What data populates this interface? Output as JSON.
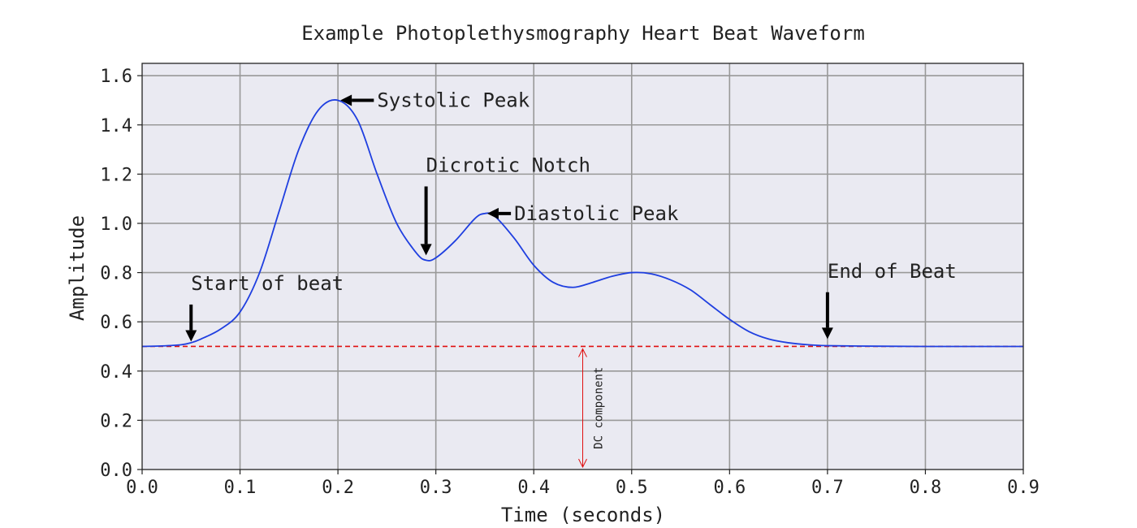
{
  "chart_data": {
    "type": "line",
    "title": "Example Photoplethysmography Heart Beat Waveform",
    "xlabel": "Time (seconds)",
    "ylabel": "Amplitude",
    "xlim": [
      0.0,
      0.9
    ],
    "ylim": [
      0.0,
      1.65
    ],
    "xticks": [
      "0.0",
      "0.1",
      "0.2",
      "0.3",
      "0.4",
      "0.5",
      "0.6",
      "0.7",
      "0.8",
      "0.9"
    ],
    "yticks": [
      "0.0",
      "0.2",
      "0.4",
      "0.6",
      "0.8",
      "1.0",
      "1.2",
      "1.4",
      "1.6"
    ],
    "grid": true,
    "baseline": 0.5,
    "colors": {
      "line": "#1f3fe0",
      "baseline": "#e01010",
      "plot_bg": "#eaeaf2",
      "grid": "#999999",
      "arrow": "#000000"
    },
    "series": [
      {
        "x": [
          0.0,
          0.02,
          0.04,
          0.05,
          0.06,
          0.08,
          0.1,
          0.12,
          0.14,
          0.16,
          0.18,
          0.2,
          0.22,
          0.24,
          0.26,
          0.28,
          0.29,
          0.3,
          0.32,
          0.34,
          0.35,
          0.36,
          0.38,
          0.4,
          0.42,
          0.44,
          0.46,
          0.48,
          0.5,
          0.52,
          0.54,
          0.56,
          0.58,
          0.6,
          0.62,
          0.64,
          0.66,
          0.68,
          0.7,
          0.75,
          0.8,
          0.85,
          0.9
        ],
        "y": [
          0.5,
          0.502,
          0.507,
          0.515,
          0.53,
          0.57,
          0.64,
          0.8,
          1.05,
          1.3,
          1.46,
          1.5,
          1.42,
          1.2,
          1.0,
          0.88,
          0.85,
          0.86,
          0.93,
          1.02,
          1.04,
          1.03,
          0.94,
          0.83,
          0.76,
          0.74,
          0.76,
          0.785,
          0.8,
          0.795,
          0.77,
          0.73,
          0.67,
          0.61,
          0.56,
          0.53,
          0.515,
          0.507,
          0.503,
          0.501,
          0.5,
          0.5,
          0.5
        ]
      }
    ],
    "annotations": [
      {
        "text": "Systolic Peak",
        "x": 0.2,
        "y": 1.5,
        "text_x": 0.24,
        "text_y": 1.5
      },
      {
        "text": "Dicrotic Notch",
        "x": 0.29,
        "y": 0.86,
        "text_x": 0.29,
        "text_y": 1.17
      },
      {
        "text": "Diastolic Peak",
        "x": 0.35,
        "y": 1.04,
        "text_x": 0.38,
        "text_y": 1.04
      },
      {
        "text": "Start of beat",
        "x": 0.05,
        "y": 0.51,
        "text_x": 0.05,
        "text_y": 0.69
      },
      {
        "text": "End of Beat",
        "x": 0.7,
        "y": 0.52,
        "text_x": 0.7,
        "text_y": 0.74
      }
    ],
    "dc_label": "DC component",
    "dc_arrow_x": 0.45
  }
}
